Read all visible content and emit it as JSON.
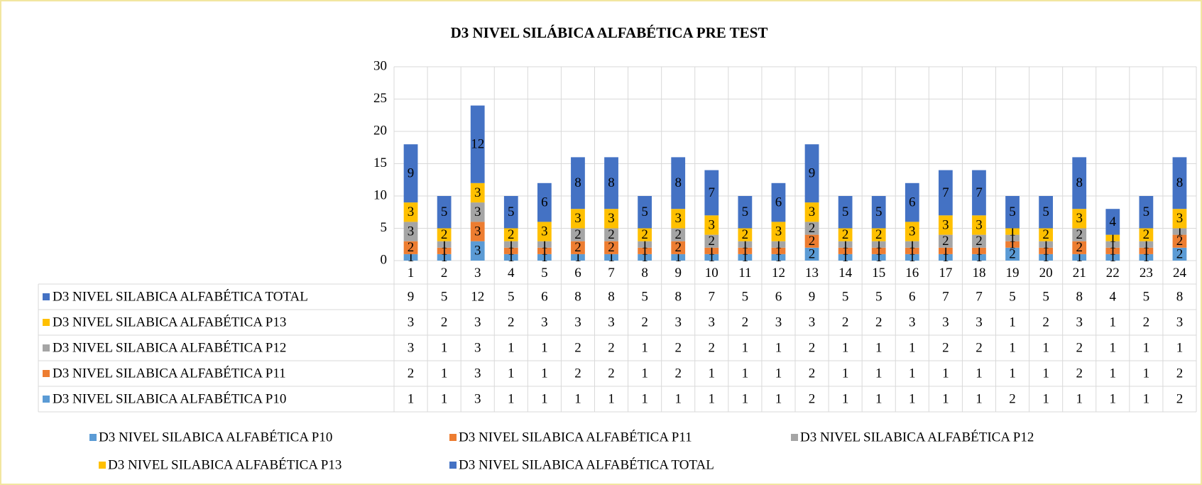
{
  "chart_data": {
    "type": "bar",
    "stacked": true,
    "title": "D3 NIVEL  SILÁBICA ALFABÉTICA PRE TEST",
    "categories": [
      "1",
      "2",
      "3",
      "4",
      "5",
      "6",
      "7",
      "8",
      "9",
      "10",
      "11",
      "12",
      "13",
      "14",
      "15",
      "16",
      "17",
      "18",
      "19",
      "20",
      "21",
      "22",
      "23",
      "24"
    ],
    "series": [
      {
        "name": "D3 NIVEL  SILABICA ALFABÉTICA P10",
        "color": "#5b9bd5",
        "values": [
          1,
          1,
          3,
          1,
          1,
          1,
          1,
          1,
          1,
          1,
          1,
          1,
          2,
          1,
          1,
          1,
          1,
          1,
          2,
          1,
          1,
          1,
          1,
          2
        ]
      },
      {
        "name": "D3 NIVEL  SILABICA ALFABÉTICA P11",
        "color": "#ed7d31",
        "values": [
          2,
          1,
          3,
          1,
          1,
          2,
          2,
          1,
          2,
          1,
          1,
          1,
          2,
          1,
          1,
          1,
          1,
          1,
          1,
          1,
          2,
          1,
          1,
          2
        ]
      },
      {
        "name": "D3 NIVEL  SILABICA ALFABÉTICA P12",
        "color": "#a5a5a5",
        "values": [
          3,
          1,
          3,
          1,
          1,
          2,
          2,
          1,
          2,
          2,
          1,
          1,
          2,
          1,
          1,
          1,
          2,
          2,
          1,
          1,
          2,
          1,
          1,
          1
        ]
      },
      {
        "name": "D3 NIVEL  SILABICA ALFABÉTICA P13",
        "color": "#ffc000",
        "values": [
          3,
          2,
          3,
          2,
          3,
          3,
          3,
          2,
          3,
          3,
          2,
          3,
          3,
          2,
          2,
          3,
          3,
          3,
          1,
          2,
          3,
          1,
          2,
          3
        ]
      },
      {
        "name": "D3 NIVEL  SILABICA ALFABÉTICA TOTAL",
        "color": "#4472c4",
        "values": [
          9,
          5,
          12,
          5,
          6,
          8,
          8,
          5,
          8,
          7,
          5,
          6,
          9,
          5,
          5,
          6,
          7,
          7,
          5,
          5,
          8,
          4,
          5,
          8
        ]
      }
    ],
    "ylim": [
      0,
      30
    ],
    "yticks": [
      0,
      5,
      10,
      15,
      20,
      25,
      30
    ],
    "grid": true,
    "data_table": true,
    "legend": "bottom"
  }
}
